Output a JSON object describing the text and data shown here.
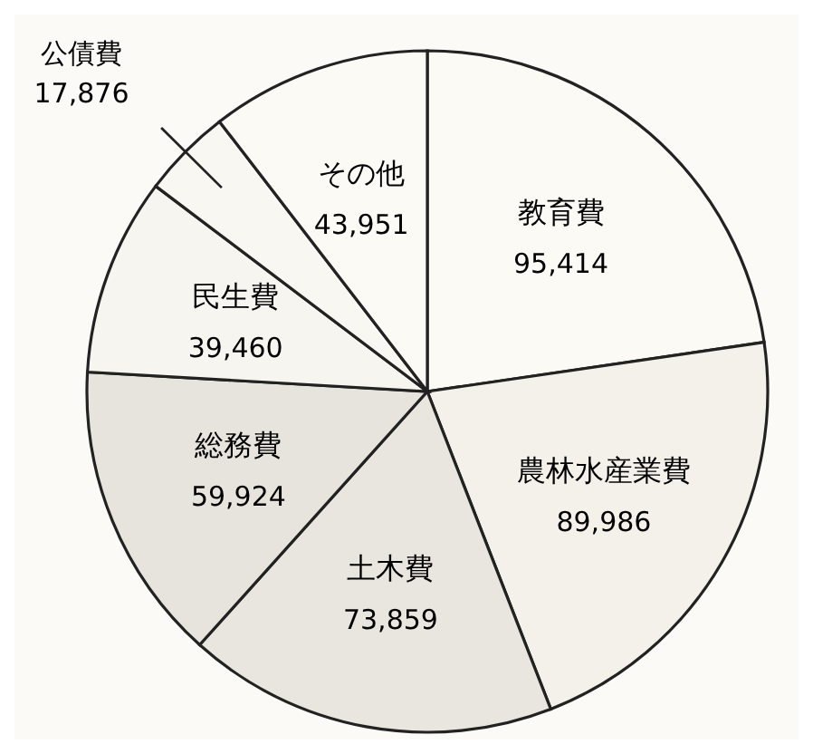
{
  "chart_data": {
    "type": "pie",
    "categories": [
      "教育費",
      "農林水産業費",
      "土木費",
      "総務費",
      "民生費",
      "公債費",
      "その他"
    ],
    "values": [
      95414,
      89986,
      73859,
      59924,
      39460,
      17876,
      43951
    ],
    "value_labels": [
      "95,414",
      "89,986",
      "73,859",
      "59,924",
      "39,460",
      "17,876",
      "43,951"
    ],
    "colors": [
      "#fbfaf5",
      "#f3f1ea",
      "#e8e6df",
      "#e6e4dd",
      "#f6f5ef",
      "#f8f7f2",
      "#fbfaf5"
    ]
  }
}
